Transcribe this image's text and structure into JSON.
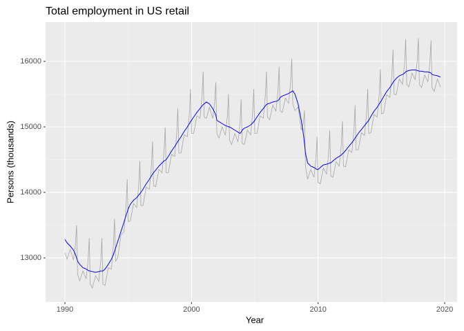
{
  "chart_data": {
    "type": "line",
    "title": "Total employment in US retail",
    "xlabel": "Year",
    "ylabel": "Persons (thousands)",
    "x": [
      1990,
      1990.17,
      1990.42,
      1990.67,
      1990.83,
      1990.92,
      1991,
      1991.17,
      1991.42,
      1991.67,
      1991.83,
      1991.92,
      1992,
      1992.17,
      1992.42,
      1992.67,
      1992.83,
      1992.92,
      1993,
      1993.17,
      1993.42,
      1993.67,
      1993.83,
      1993.92,
      1994,
      1994.17,
      1994.42,
      1994.67,
      1994.83,
      1994.92,
      1995,
      1995.17,
      1995.42,
      1995.67,
      1995.83,
      1995.92,
      1996,
      1996.17,
      1996.42,
      1996.67,
      1996.83,
      1996.92,
      1997,
      1997.17,
      1997.42,
      1997.67,
      1997.83,
      1997.92,
      1998,
      1998.17,
      1998.42,
      1998.67,
      1998.83,
      1998.92,
      1999,
      1999.17,
      1999.42,
      1999.67,
      1999.83,
      1999.92,
      2000,
      2000.17,
      2000.42,
      2000.67,
      2000.83,
      2000.92,
      2001,
      2001.17,
      2001.42,
      2001.67,
      2001.83,
      2001.92,
      2002,
      2002.17,
      2002.42,
      2002.67,
      2002.83,
      2002.92,
      2003,
      2003.17,
      2003.42,
      2003.67,
      2003.83,
      2003.92,
      2004,
      2004.17,
      2004.42,
      2004.67,
      2004.83,
      2004.92,
      2005,
      2005.17,
      2005.42,
      2005.67,
      2005.83,
      2005.92,
      2006,
      2006.17,
      2006.42,
      2006.67,
      2006.83,
      2006.92,
      2007,
      2007.17,
      2007.42,
      2007.67,
      2007.83,
      2007.92,
      2008,
      2008.17,
      2008.42,
      2008.67,
      2008.83,
      2008.92,
      2009,
      2009.17,
      2009.42,
      2009.67,
      2009.83,
      2009.92,
      2010,
      2010.17,
      2010.42,
      2010.67,
      2010.83,
      2010.92,
      2011,
      2011.17,
      2011.42,
      2011.67,
      2011.83,
      2011.92,
      2012,
      2012.17,
      2012.42,
      2012.67,
      2012.83,
      2012.92,
      2013,
      2013.17,
      2013.42,
      2013.67,
      2013.83,
      2013.92,
      2014,
      2014.17,
      2014.42,
      2014.67,
      2014.83,
      2014.92,
      2015,
      2015.17,
      2015.42,
      2015.67,
      2015.83,
      2015.92,
      2016,
      2016.17,
      2016.42,
      2016.67,
      2016.83,
      2016.92,
      2017,
      2017.17,
      2017.42,
      2017.67,
      2017.83,
      2017.92,
      2018,
      2018.17,
      2018.42,
      2018.67,
      2018.83,
      2018.92,
      2019,
      2019.17,
      2019.42,
      2019.67
    ],
    "series": [
      {
        "color": "#a6a6a6",
        "values": [
          13080,
          12980,
          13130,
          12970,
          13200,
          13500,
          12750,
          12650,
          12800,
          12680,
          12960,
          13300,
          12600,
          12540,
          12730,
          12640,
          12950,
          13300,
          12600,
          12580,
          12850,
          12830,
          13200,
          13600,
          12950,
          13000,
          13350,
          13400,
          13800,
          14200,
          13550,
          13570,
          13830,
          13770,
          14110,
          14480,
          13800,
          13800,
          14080,
          14050,
          14400,
          14780,
          14100,
          14090,
          14350,
          14300,
          14630,
          14990,
          14300,
          14300,
          14580,
          14550,
          14900,
          15280,
          14600,
          14600,
          14880,
          14850,
          15200,
          15580,
          14900,
          14900,
          15170,
          15130,
          15470,
          15840,
          15150,
          15130,
          15300,
          15130,
          15370,
          15680,
          14900,
          14830,
          15000,
          14870,
          15160,
          15500,
          14800,
          14730,
          14900,
          14770,
          15050,
          15420,
          14750,
          14730,
          14950,
          14880,
          15210,
          15580,
          14900,
          14900,
          15170,
          15130,
          15470,
          15840,
          15150,
          15110,
          15330,
          15240,
          15550,
          15920,
          15250,
          15220,
          15440,
          15360,
          15680,
          16040,
          15350,
          15250,
          15300,
          14950,
          15050,
          15250,
          14400,
          14200,
          14350,
          14230,
          14510,
          14850,
          14150,
          14130,
          14370,
          14280,
          14590,
          14950,
          14250,
          14230,
          14470,
          14400,
          14720,
          15090,
          14400,
          14390,
          14650,
          14610,
          14950,
          15330,
          14650,
          14650,
          14910,
          14870,
          15210,
          15580,
          14900,
          14910,
          15190,
          15150,
          15500,
          15880,
          15200,
          15210,
          15490,
          15450,
          15800,
          16180,
          15500,
          15490,
          15730,
          15650,
          15970,
          16340,
          15650,
          15610,
          15820,
          15720,
          16010,
          16355,
          15650,
          15600,
          15790,
          15690,
          15980,
          16320,
          15600,
          15540,
          15730,
          15610
        ]
      },
      {
        "color": "#0000ff",
        "values": [
          13280,
          13230,
          13180,
          13120,
          13050,
          13000,
          12950,
          12900,
          12850,
          12830,
          12810,
          12800,
          12800,
          12790,
          12780,
          12790,
          12800,
          12800,
          12800,
          12830,
          12900,
          12980,
          13050,
          13100,
          13150,
          13250,
          13400,
          13550,
          13650,
          13700,
          13750,
          13820,
          13880,
          13920,
          13960,
          13980,
          14000,
          14050,
          14130,
          14200,
          14250,
          14280,
          14300,
          14340,
          14400,
          14450,
          14480,
          14490,
          14500,
          14550,
          14630,
          14700,
          14750,
          14780,
          14800,
          14850,
          14930,
          15000,
          15050,
          15080,
          15100,
          15150,
          15220,
          15280,
          15320,
          15340,
          15350,
          15380,
          15350,
          15280,
          15220,
          15180,
          15100,
          15080,
          15050,
          15020,
          15010,
          15000,
          15000,
          14980,
          14950,
          14920,
          14900,
          14920,
          14950,
          14980,
          15000,
          15030,
          15060,
          15080,
          15100,
          15150,
          15220,
          15280,
          15320,
          15340,
          15350,
          15360,
          15380,
          15390,
          15400,
          15420,
          15450,
          15470,
          15490,
          15510,
          15530,
          15540,
          15550,
          15500,
          15350,
          15100,
          14900,
          14750,
          14600,
          14450,
          14400,
          14380,
          14360,
          14350,
          14350,
          14380,
          14420,
          14430,
          14440,
          14450,
          14450,
          14480,
          14520,
          14550,
          14570,
          14590,
          14600,
          14640,
          14700,
          14760,
          14800,
          14830,
          14850,
          14900,
          14960,
          15020,
          15060,
          15080,
          15100,
          15160,
          15240,
          15300,
          15350,
          15380,
          15400,
          15460,
          15540,
          15600,
          15650,
          15680,
          15700,
          15740,
          15780,
          15800,
          15820,
          15840,
          15850,
          15860,
          15870,
          15870,
          15860,
          15855,
          15850,
          15850,
          15840,
          15840,
          15830,
          15820,
          15800,
          15790,
          15780,
          15760
        ]
      }
    ],
    "xlim": [
      1988.47,
      2020.98
    ],
    "xticks": [
      1990,
      2000,
      2010,
      2020
    ],
    "ylim": [
      12326,
      16600
    ],
    "yticks": [
      13000,
      14000,
      15000,
      16000
    ],
    "grid": true
  }
}
